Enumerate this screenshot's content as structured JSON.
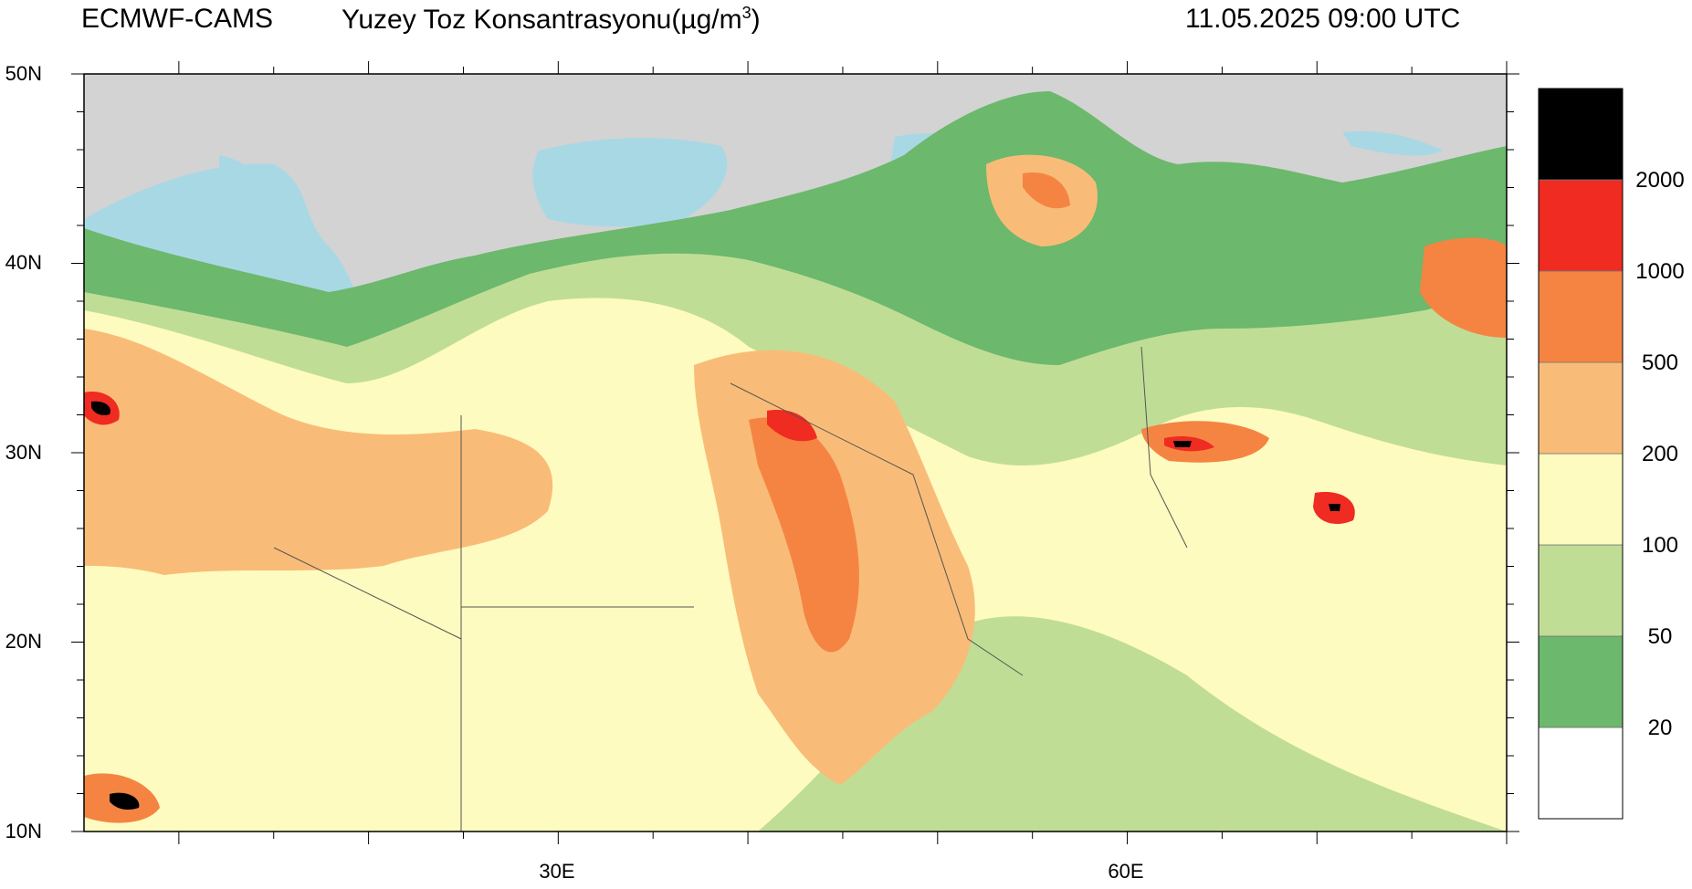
{
  "header": {
    "model": "ECMWF-CAMS",
    "title_main": "Yuzey Toz Konsantrasyonu(µg/m",
    "title_sup": "3",
    "title_end": ")",
    "datetime": "11.05.2025 09:00 UTC"
  },
  "axes": {
    "lat_labels": [
      "50N",
      "40N",
      "30N",
      "20N",
      "10N"
    ],
    "lon_labels": [
      "30E",
      "60E"
    ]
  },
  "colorbar": {
    "colors": [
      "#ffffff",
      "#6cb86c",
      "#c0dd96",
      "#fefbc0",
      "#f9bc78",
      "#f58442",
      "#ef2b22",
      "#000000"
    ],
    "labels": [
      "20",
      "50",
      "100",
      "200",
      "500",
      "1000",
      "2000"
    ]
  },
  "map": {
    "land_color": "#d3d3d3",
    "water_color": "#a9d8e5",
    "extent": {
      "lon": [
        5,
        80
      ],
      "lat": [
        10,
        50
      ]
    }
  }
}
